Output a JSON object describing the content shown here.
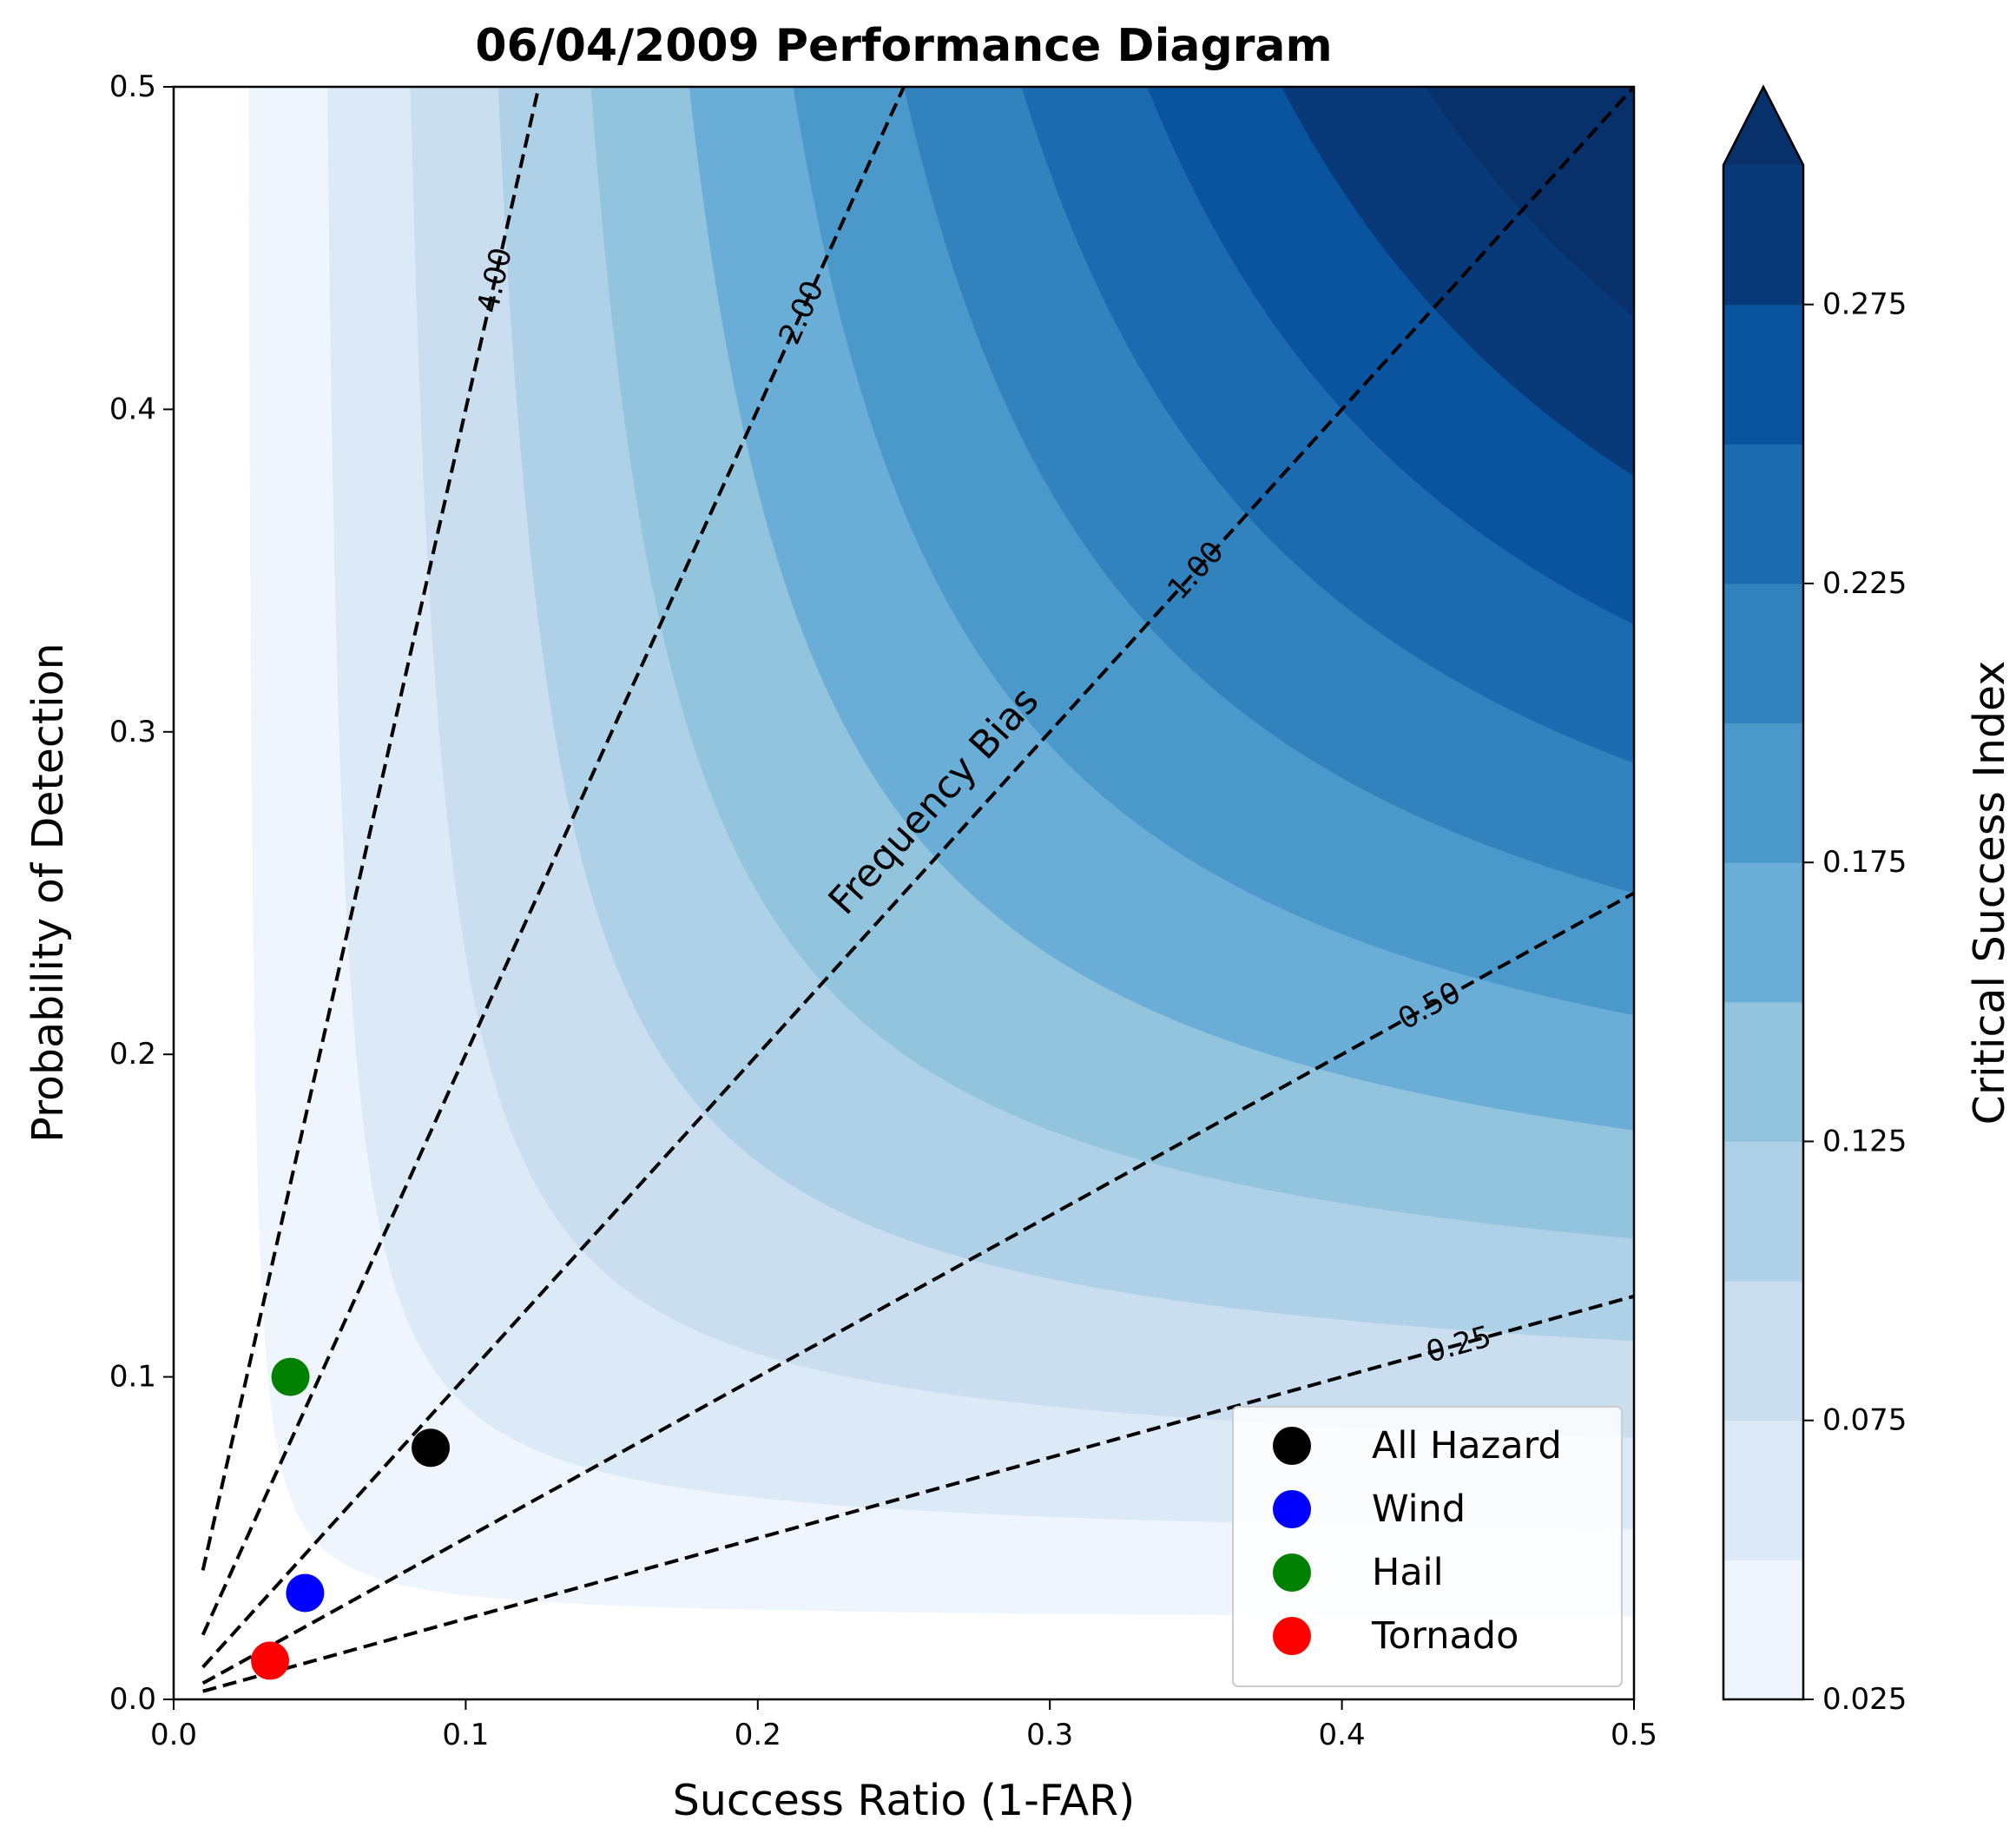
{
  "chart_data": {
    "type": "contour",
    "title": "06/04/2009 Performance Diagram",
    "xlabel": "Success Ratio (1-FAR)",
    "ylabel": "Probability of Detection",
    "xlim": [
      0,
      0.5
    ],
    "ylim": [
      0,
      0.5
    ],
    "x_ticks": [
      "0.0",
      "0.1",
      "0.2",
      "0.3",
      "0.4",
      "0.5"
    ],
    "y_ticks": [
      "0.0",
      "0.1",
      "0.2",
      "0.3",
      "0.4",
      "0.5"
    ],
    "grid": false,
    "csi_levels": [
      0.025,
      0.05,
      0.075,
      0.1,
      0.125,
      0.15,
      0.175,
      0.2,
      0.225,
      0.25,
      0.275,
      0.3
    ],
    "csi_colors": [
      "#eff5fc",
      "#dce9f6",
      "#cadef0",
      "#afd1e7",
      "#92c4de",
      "#6aadd6",
      "#4b98ca",
      "#3282be",
      "#1c6aaf",
      "#0a539e",
      "#083a7a",
      "#08306b"
    ],
    "colorbar": {
      "label": "Critical Success Index",
      "tick_values": [
        0.025,
        0.075,
        0.125,
        0.175,
        0.225,
        0.275
      ],
      "tick_labels": [
        "0.025",
        "0.075",
        "0.125",
        "0.175",
        "0.225",
        "0.275"
      ],
      "extend": "max"
    },
    "bias_lines": {
      "title": "Frequency Bias",
      "values": [
        0.25,
        0.5,
        1.0,
        2.0,
        4.0
      ],
      "labels": [
        "0.25",
        "0.50",
        "1.00",
        "2.00",
        "4.00"
      ],
      "style": "dashed",
      "color": "#000000"
    },
    "series": [
      {
        "name": "All Hazard",
        "color": "#000000",
        "x": 0.088,
        "y": 0.078
      },
      {
        "name": "Wind",
        "color": "#0000ff",
        "x": 0.045,
        "y": 0.033
      },
      {
        "name": "Hail",
        "color": "#008000",
        "x": 0.04,
        "y": 0.1
      },
      {
        "name": "Tornado",
        "color": "#ff0000",
        "x": 0.033,
        "y": 0.012
      }
    ],
    "legend_position": "lower-right"
  }
}
